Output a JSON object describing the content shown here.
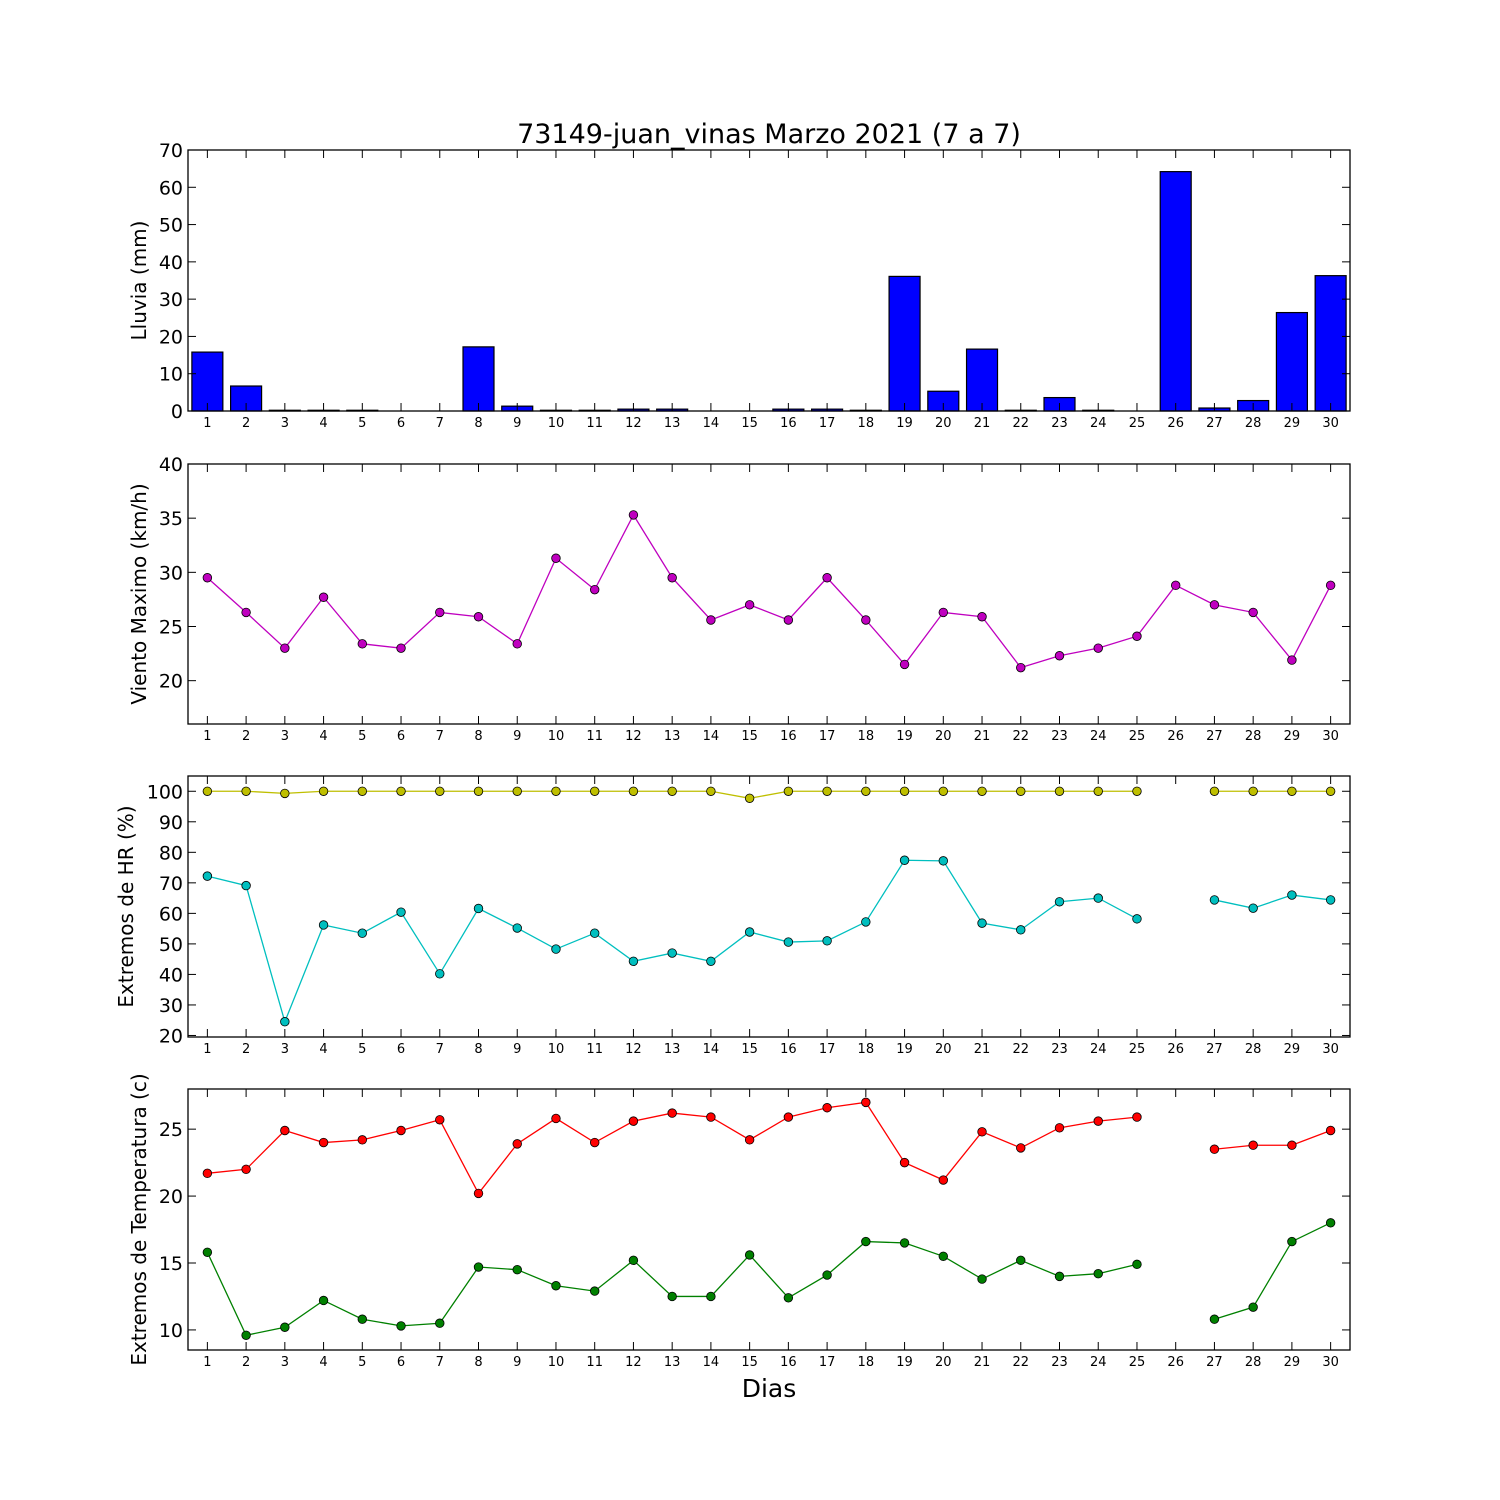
{
  "chart_data": {
    "title": "73149-juan_vinas Marzo 2021  (7 a 7)",
    "xlabel": "Dias",
    "days": [
      1,
      2,
      3,
      4,
      5,
      6,
      7,
      8,
      9,
      10,
      11,
      12,
      13,
      14,
      15,
      16,
      17,
      18,
      19,
      20,
      21,
      22,
      23,
      24,
      25,
      26,
      27,
      28,
      29,
      30
    ],
    "panels": [
      {
        "id": "lluvia",
        "type": "bar",
        "ylabel": "Lluvia (mm)",
        "ylim": [
          0,
          70
        ],
        "yticks": [
          0,
          10,
          20,
          30,
          40,
          50,
          60,
          70
        ],
        "series": [
          {
            "color": "#0000ff",
            "values": [
              15.8,
              6.7,
              0.2,
              0.2,
              0.2,
              0,
              0,
              17.2,
              1.3,
              0.2,
              0.2,
              0.5,
              0.5,
              0,
              0,
              0.5,
              0.5,
              0.2,
              36.1,
              5.3,
              16.6,
              0.2,
              3.6,
              0.2,
              0,
              64.2,
              0.8,
              2.8,
              26.4,
              36.3
            ]
          }
        ]
      },
      {
        "id": "viento",
        "type": "line",
        "ylabel": "Viento Maximo (km/h)",
        "ylim": [
          16,
          40
        ],
        "yticks": [
          20,
          25,
          30,
          35,
          40
        ],
        "series": [
          {
            "color": "#bf00bf",
            "values": [
              29.5,
              26.3,
              23.0,
              27.7,
              23.4,
              23.0,
              26.3,
              25.9,
              23.4,
              31.3,
              28.4,
              35.3,
              29.5,
              25.6,
              27.0,
              25.6,
              29.5,
              25.6,
              21.5,
              26.3,
              25.9,
              21.2,
              22.3,
              23.0,
              24.1,
              28.8,
              27.0,
              26.3,
              21.9,
              28.8
            ]
          }
        ]
      },
      {
        "id": "hr",
        "type": "line",
        "ylabel": "Extremos de HR (%)",
        "ylim": [
          19.5,
          105
        ],
        "yticks": [
          20,
          30,
          40,
          50,
          60,
          70,
          80,
          90,
          100
        ],
        "series": [
          {
            "color": "#bfbf00",
            "values": [
              100,
              100,
              99.3,
              100,
              100,
              100,
              100,
              100,
              100,
              100,
              100,
              100,
              100,
              100,
              97.7,
              100,
              100,
              100,
              100,
              100,
              100,
              100,
              100,
              100,
              100,
              null,
              100,
              100,
              100,
              100
            ]
          },
          {
            "color": "#00bfbf",
            "values": [
              72.2,
              69.1,
              24.5,
              56.2,
              53.5,
              60.4,
              40.2,
              61.6,
              55.2,
              48.3,
              53.5,
              44.3,
              47.0,
              44.3,
              53.9,
              50.6,
              51.0,
              57.2,
              77.4,
              77.2,
              56.8,
              54.6,
              63.8,
              65.0,
              58.2,
              null,
              64.4,
              61.7,
              66.0,
              64.4
            ]
          }
        ]
      },
      {
        "id": "temp",
        "type": "line",
        "ylabel": "Extremos de Temperatura (c)",
        "ylim": [
          8.5,
          28
        ],
        "yticks": [
          10,
          15,
          20,
          25
        ],
        "series": [
          {
            "color": "#ff0000",
            "values": [
              21.7,
              22.0,
              24.9,
              24.0,
              24.2,
              24.9,
              25.7,
              20.2,
              23.9,
              25.8,
              24.0,
              25.6,
              26.2,
              25.9,
              24.2,
              25.9,
              26.6,
              27.0,
              22.5,
              21.2,
              24.8,
              23.6,
              25.1,
              25.6,
              25.9,
              null,
              23.5,
              23.8,
              23.8,
              24.9
            ]
          },
          {
            "color": "#008000",
            "values": [
              15.8,
              9.6,
              10.2,
              12.2,
              10.8,
              10.3,
              10.5,
              14.7,
              14.5,
              13.3,
              12.9,
              15.2,
              12.5,
              12.5,
              15.6,
              12.4,
              14.1,
              16.6,
              16.5,
              15.5,
              13.8,
              15.2,
              14.0,
              14.2,
              14.9,
              null,
              10.8,
              11.7,
              16.6,
              18.0
            ]
          }
        ]
      }
    ]
  }
}
